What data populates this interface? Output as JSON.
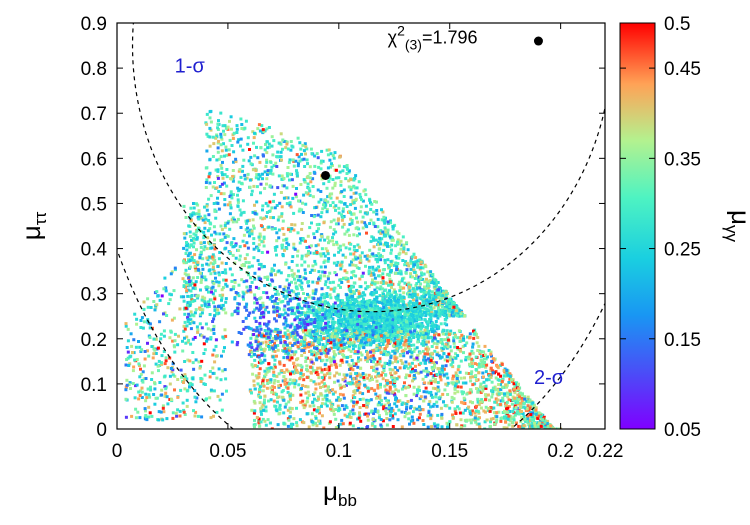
{
  "chart_data": {
    "type": "scatter",
    "xlabel": {
      "base": "μ",
      "sub": "bb"
    },
    "ylabel": {
      "base": "μ",
      "sub": "ττ"
    },
    "colorbar_label": {
      "base": "μ",
      "sub": "γγ"
    },
    "xlim": [
      0,
      0.22
    ],
    "ylim": [
      0,
      0.9
    ],
    "clim": [
      0.05,
      0.5
    ],
    "x_ticks": [
      {
        "value": 0,
        "label": "0"
      },
      {
        "value": 0.05,
        "label": "0.05"
      },
      {
        "value": 0.1,
        "label": "0.1"
      },
      {
        "value": 0.15,
        "label": "0.15"
      },
      {
        "value": 0.2,
        "label": "0.2"
      },
      {
        "value": 0.22,
        "label": "0.22"
      }
    ],
    "y_ticks": [
      {
        "value": 0,
        "label": "0"
      },
      {
        "value": 0.1,
        "label": "0.1"
      },
      {
        "value": 0.2,
        "label": "0.2"
      },
      {
        "value": 0.3,
        "label": "0.3"
      },
      {
        "value": 0.4,
        "label": "0.4"
      },
      {
        "value": 0.5,
        "label": "0.5"
      },
      {
        "value": 0.6,
        "label": "0.6"
      },
      {
        "value": 0.7,
        "label": "0.7"
      },
      {
        "value": 0.8,
        "label": "0.8"
      },
      {
        "value": 0.9,
        "label": "0.9"
      }
    ],
    "color_ticks": [
      {
        "value": 0.05,
        "label": "0.05"
      },
      {
        "value": 0.15,
        "label": "0.15"
      },
      {
        "value": 0.25,
        "label": "0.25"
      },
      {
        "value": 0.35,
        "label": "0.35"
      },
      {
        "value": 0.45,
        "label": "0.45"
      },
      {
        "value": 0.5,
        "label": "0.5"
      }
    ],
    "best_fit_points": [
      {
        "name": "best-fit-point-upper",
        "x": 0.19,
        "y": 0.86
      },
      {
        "name": "best-fit-point-middle",
        "x": 0.094,
        "y": 0.562
      }
    ],
    "contours": [
      {
        "name": "contour-1-sigma",
        "label": "1-σ",
        "center": [
          0.115,
          0.85
        ],
        "radii": [
          0.108,
          0.59
        ]
      },
      {
        "name": "contour-2-sigma",
        "label": "2-σ",
        "center": [
          0.115,
          0.85
        ],
        "radii": [
          0.13,
          0.97
        ]
      }
    ],
    "contour_labels": [
      {
        "name": "label-1-sigma",
        "text": "1-σ",
        "x": 0.026,
        "y": 0.79
      },
      {
        "name": "label-2-sigma",
        "text": "2-σ",
        "x": 0.188,
        "y": 0.1
      }
    ],
    "annotation": {
      "base": "χ",
      "sup": "2",
      "sub": "(3)",
      "value": "=1.796",
      "x": 0.122,
      "y": 0.855
    },
    "scatter_regions": [
      {
        "name": "upper-band",
        "count": 2200,
        "x_range": [
          0.03,
          0.16
        ],
        "y_top": 0.72,
        "color_mean": 0.3
      },
      {
        "name": "dense-core",
        "count": 1600,
        "x_range": [
          0.08,
          0.15
        ],
        "y_range": [
          0.15,
          0.3
        ],
        "color_mean": 0.26
      },
      {
        "name": "lower-band",
        "count": 2400,
        "x_range": [
          0.06,
          0.2
        ],
        "y_range": [
          0.0,
          0.2
        ],
        "color_mean": 0.35
      },
      {
        "name": "left-sparse",
        "count": 450,
        "x_range": [
          0.004,
          0.05
        ],
        "y_range": [
          0.02,
          0.5
        ],
        "color_mean": 0.3
      }
    ]
  }
}
